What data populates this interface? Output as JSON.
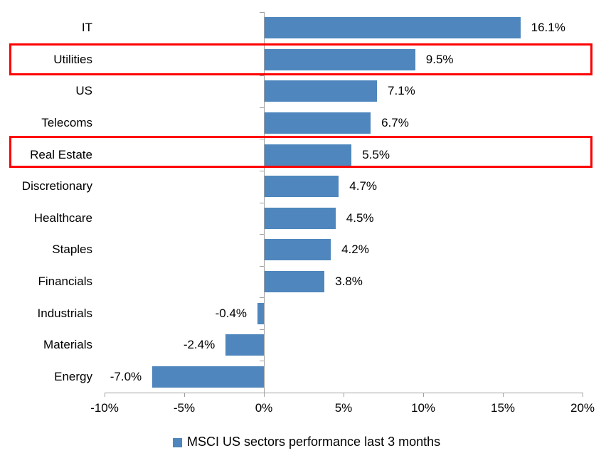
{
  "chart_data": {
    "type": "bar",
    "orientation": "horizontal",
    "categories": [
      "IT",
      "Utilities",
      "US",
      "Telecoms",
      "Real Estate",
      "Discretionary",
      "Healthcare",
      "Staples",
      "Financials",
      "Industrials",
      "Materials",
      "Energy"
    ],
    "values": [
      16.1,
      9.5,
      7.1,
      6.7,
      5.5,
      4.7,
      4.5,
      4.2,
      3.8,
      -0.4,
      -2.4,
      -7.0
    ],
    "data_labels": [
      "16.1%",
      "9.5%",
      "7.1%",
      "6.7%",
      "5.5%",
      "4.7%",
      "4.5%",
      "4.2%",
      "3.8%",
      "-0.4%",
      "-2.4%",
      "-7.0%"
    ],
    "highlighted_categories": [
      "Utilities",
      "Real Estate"
    ],
    "xlim": [
      -10,
      20
    ],
    "x_tick_labels": [
      "-10%",
      "-5%",
      "0%",
      "5%",
      "10%",
      "15%",
      "20%"
    ],
    "x_tick_values": [
      -10,
      -5,
      0,
      5,
      10,
      15,
      20
    ],
    "grid": false,
    "legend": {
      "label": "MSCI US sectors performance last 3 months",
      "position": "bottom"
    },
    "colors": {
      "bar": "#4e86bd",
      "highlight": "#ff0000",
      "axis": "#a0a0a0",
      "text": "#000000"
    }
  }
}
